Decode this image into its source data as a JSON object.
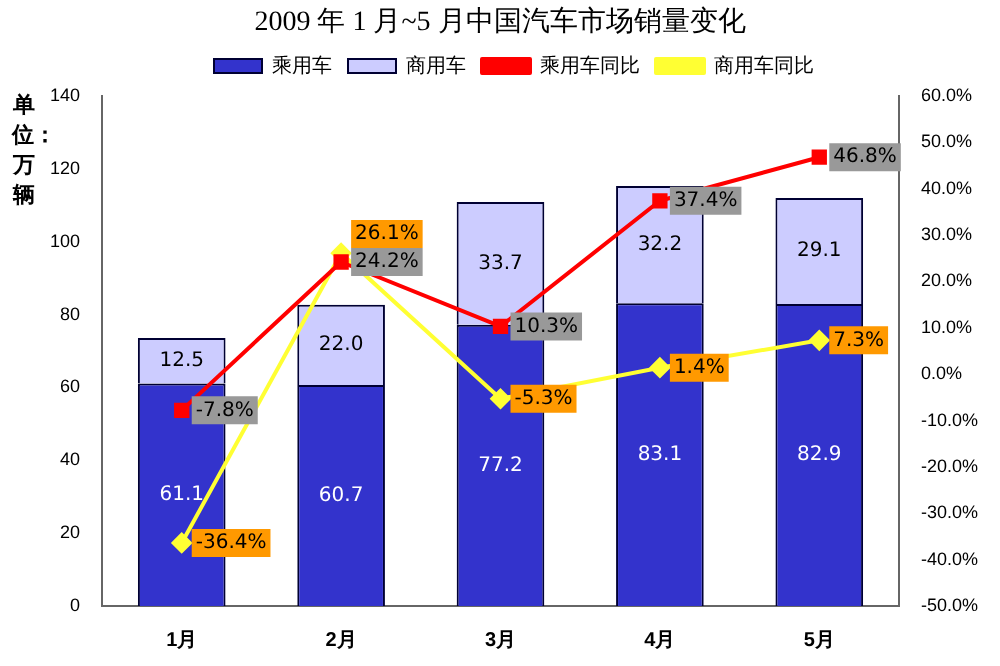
{
  "chart_data": {
    "type": "bar",
    "title": "2009 年 1 月~5 月中国汽车市场销量变化",
    "ylabel": "单位：万辆",
    "stacked": true,
    "legend": "top",
    "grid": false,
    "categories": [
      "1月",
      "2月",
      "3月",
      "4月",
      "5月"
    ],
    "ylim": [
      0,
      140
    ],
    "yticks": [
      0,
      20,
      40,
      60,
      80,
      100,
      120,
      140
    ],
    "y2lim": [
      -50,
      60
    ],
    "y2ticks": [
      {
        "value": -50,
        "label": "-50.0%"
      },
      {
        "value": -40,
        "label": "-40.0%"
      },
      {
        "value": -30,
        "label": "-30.0%"
      },
      {
        "value": -20,
        "label": "-20.0%"
      },
      {
        "value": -10,
        "label": "-10.0%"
      },
      {
        "value": 0,
        "label": "0.0%"
      },
      {
        "value": 10,
        "label": "10.0%"
      },
      {
        "value": 20,
        "label": "20.0%"
      },
      {
        "value": 30,
        "label": "30.0%"
      },
      {
        "value": 40,
        "label": "40.0%"
      },
      {
        "value": 50,
        "label": "50.0%"
      },
      {
        "value": 60,
        "label": "60.0%"
      }
    ],
    "series": [
      {
        "name": "乘用车",
        "color": "#3333cc",
        "values": [
          61.1,
          60.7,
          77.2,
          83.1,
          82.9
        ],
        "value_labels": [
          "61.1",
          "60.7",
          "77.2",
          "83.1",
          "82.9"
        ]
      },
      {
        "name": "商用车",
        "color": "#ccccff",
        "values": [
          12.5,
          22.0,
          33.7,
          32.2,
          29.1
        ],
        "value_labels": [
          "12.5",
          "22.0",
          "33.7",
          "32.2",
          "29.1"
        ]
      },
      {
        "name": "乘用车同比",
        "type": "line",
        "axis": "y2",
        "color": "#ff0000",
        "marker": "square",
        "values": [
          -7.8,
          24.2,
          10.3,
          37.4,
          46.8
        ],
        "value_labels": [
          "-7.8%",
          "24.2%",
          "10.3%",
          "37.4%",
          "46.8%"
        ]
      },
      {
        "name": "商用车同比",
        "type": "line",
        "axis": "y2",
        "color": "#ffff33",
        "marker": "diamond",
        "values": [
          -36.4,
          26.1,
          -5.3,
          1.4,
          7.3
        ],
        "value_labels": [
          "-36.4%",
          "26.1%",
          "-5.3%",
          "1.4%",
          "7.3%"
        ]
      }
    ]
  }
}
